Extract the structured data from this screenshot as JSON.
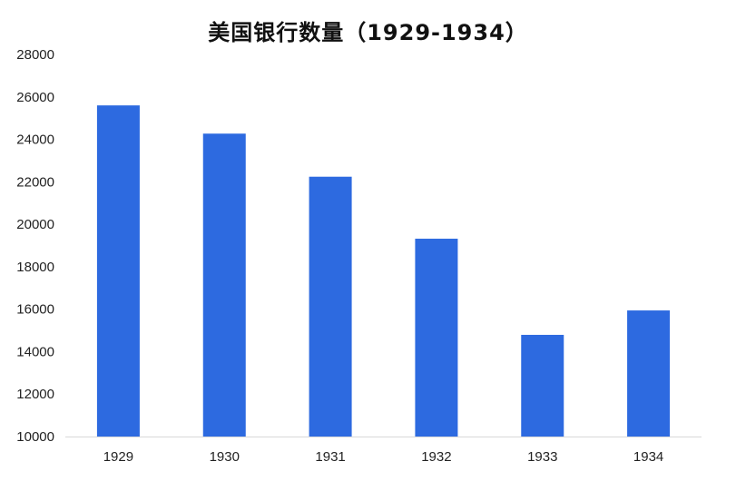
{
  "chart_data": {
    "type": "bar",
    "title": "美国银行数量（1929-1934）",
    "categories": [
      "1929",
      "1930",
      "1931",
      "1932",
      "1933",
      "1934"
    ],
    "values": [
      25600,
      24270,
      22240,
      19320,
      14790,
      15940
    ],
    "xlabel": "",
    "ylabel": "",
    "ylim": [
      10000,
      28000
    ],
    "yticks": [
      "10000",
      "12000",
      "14000",
      "16000",
      "18000",
      "20000",
      "22000",
      "24000",
      "26000",
      "28000"
    ],
    "grid": false,
    "legend": "none",
    "bar_color": "#2d6ae0"
  }
}
